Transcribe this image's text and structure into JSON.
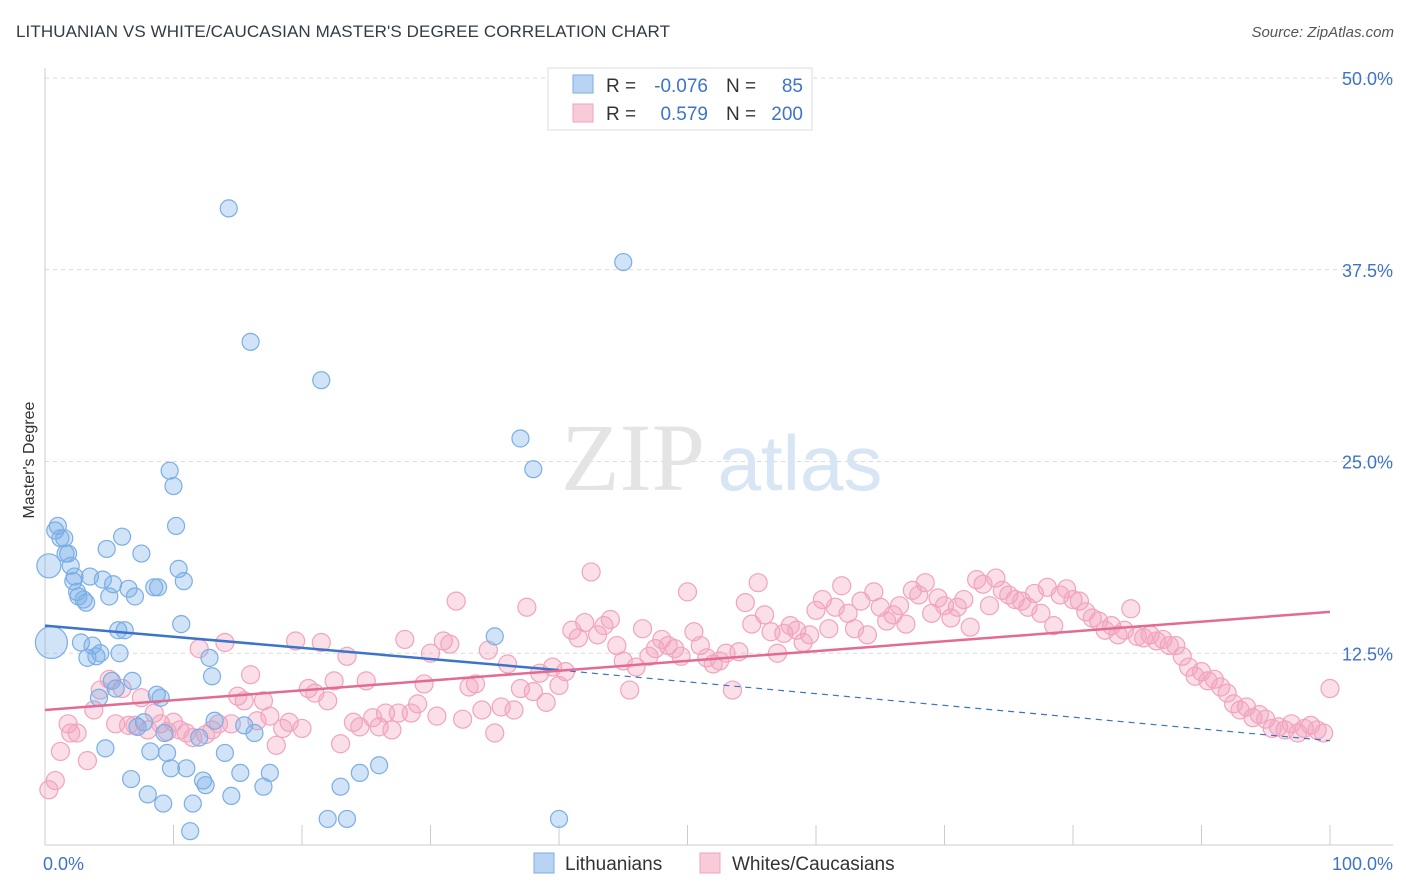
{
  "header": {
    "title": "LITHUANIAN VS WHITE/CAUCASIAN MASTER'S DEGREE CORRELATION CHART",
    "source": "Source: ZipAtlas.com"
  },
  "chart_data": {
    "type": "scatter",
    "ylabel": "Master's Degree",
    "xlim": [
      0,
      100
    ],
    "ylim": [
      0,
      50
    ],
    "y_ticks": [
      12.5,
      25.0,
      37.5,
      50.0
    ],
    "y_tick_labels": [
      "12.5%",
      "25.0%",
      "37.5%",
      "50.0%"
    ],
    "x_tick_labels": [
      "0.0%",
      "100.0%"
    ],
    "grid": true,
    "watermark": {
      "zip": "ZIP",
      "atlas": "atlas"
    },
    "legend_position": "top-center",
    "stats": [
      {
        "r_label": "R =",
        "r_value": "-0.076",
        "n_label": "N =",
        "n_value": "85"
      },
      {
        "r_label": "R =",
        "r_value": "0.579",
        "n_label": "N =",
        "n_value": "200"
      }
    ],
    "colors": {
      "blue": "#7aaee6",
      "blue_line": "#3b74c9",
      "pink": "#f2a3bd",
      "pink_line": "#e36a93",
      "axis_label": "#3d73c9"
    },
    "series": [
      {
        "name": "Lithuanians",
        "trend": {
          "solid": [
            [
              0,
              14.3
            ],
            [
              40,
              11.4
            ]
          ],
          "dashed": [
            [
              40,
              11.4
            ],
            [
              100,
              6.8
            ]
          ]
        },
        "points": [
          [
            0.3,
            18.2
          ],
          [
            0.5,
            13.2
          ],
          [
            0.8,
            20.5
          ],
          [
            1.0,
            20.8
          ],
          [
            1.2,
            20.0
          ],
          [
            1.5,
            20.0
          ],
          [
            1.6,
            19.0
          ],
          [
            1.8,
            19.0
          ],
          [
            2.0,
            18.2
          ],
          [
            2.2,
            17.2
          ],
          [
            2.3,
            17.5
          ],
          [
            2.5,
            16.5
          ],
          [
            2.6,
            16.2
          ],
          [
            2.8,
            13.2
          ],
          [
            3.0,
            16.0
          ],
          [
            3.2,
            15.8
          ],
          [
            3.3,
            12.2
          ],
          [
            3.5,
            17.5
          ],
          [
            3.7,
            13.0
          ],
          [
            4.0,
            12.3
          ],
          [
            4.2,
            9.6
          ],
          [
            4.3,
            12.5
          ],
          [
            4.5,
            17.3
          ],
          [
            4.7,
            6.3
          ],
          [
            4.8,
            19.3
          ],
          [
            5.0,
            16.2
          ],
          [
            5.2,
            10.7
          ],
          [
            5.3,
            17.0
          ],
          [
            5.5,
            10.2
          ],
          [
            5.7,
            14.0
          ],
          [
            5.8,
            12.5
          ],
          [
            6.0,
            20.1
          ],
          [
            6.2,
            14.0
          ],
          [
            6.5,
            16.7
          ],
          [
            6.7,
            4.3
          ],
          [
            6.8,
            10.7
          ],
          [
            7.0,
            16.2
          ],
          [
            7.2,
            7.7
          ],
          [
            7.5,
            19.0
          ],
          [
            7.7,
            8.0
          ],
          [
            8.0,
            3.3
          ],
          [
            8.2,
            6.1
          ],
          [
            8.5,
            16.8
          ],
          [
            8.7,
            9.8
          ],
          [
            8.8,
            16.8
          ],
          [
            9.0,
            9.6
          ],
          [
            9.2,
            2.7
          ],
          [
            9.3,
            7.3
          ],
          [
            9.5,
            6.0
          ],
          [
            9.7,
            24.4
          ],
          [
            9.8,
            5.0
          ],
          [
            10.0,
            23.4
          ],
          [
            10.2,
            20.8
          ],
          [
            10.4,
            18.0
          ],
          [
            10.6,
            14.4
          ],
          [
            10.8,
            17.2
          ],
          [
            11.0,
            5.0
          ],
          [
            11.3,
            0.9
          ],
          [
            11.5,
            2.7
          ],
          [
            12.0,
            7.0
          ],
          [
            12.3,
            4.2
          ],
          [
            12.5,
            3.9
          ],
          [
            12.8,
            12.2
          ],
          [
            13.0,
            11.0
          ],
          [
            13.2,
            8.1
          ],
          [
            14.0,
            6.0
          ],
          [
            14.3,
            41.5
          ],
          [
            14.5,
            3.2
          ],
          [
            15.2,
            4.7
          ],
          [
            15.5,
            7.8
          ],
          [
            16.0,
            32.8
          ],
          [
            16.3,
            7.3
          ],
          [
            17.0,
            3.8
          ],
          [
            17.5,
            4.7
          ],
          [
            21.5,
            30.3
          ],
          [
            22.0,
            1.7
          ],
          [
            23.0,
            3.8
          ],
          [
            23.5,
            1.7
          ],
          [
            24.5,
            4.7
          ],
          [
            26.0,
            5.2
          ],
          [
            35.0,
            13.6
          ],
          [
            37.0,
            26.5
          ],
          [
            38.0,
            24.5
          ],
          [
            40.0,
            1.7
          ],
          [
            45.0,
            38.0
          ]
        ]
      },
      {
        "name": "Whites/Caucasians",
        "trend": {
          "solid": [
            [
              0,
              8.8
            ],
            [
              100,
              15.2
            ]
          ]
        },
        "points": [
          [
            0.3,
            3.6
          ],
          [
            0.8,
            4.2
          ],
          [
            1.2,
            6.1
          ],
          [
            1.8,
            7.9
          ],
          [
            2.0,
            7.3
          ],
          [
            2.5,
            7.3
          ],
          [
            3.3,
            5.5
          ],
          [
            3.8,
            8.8
          ],
          [
            4.3,
            10.1
          ],
          [
            5.0,
            10.8
          ],
          [
            5.5,
            7.9
          ],
          [
            6.0,
            10.2
          ],
          [
            6.5,
            7.8
          ],
          [
            7.0,
            7.8
          ],
          [
            7.5,
            9.6
          ],
          [
            8.0,
            7.5
          ],
          [
            8.5,
            8.6
          ],
          [
            9.0,
            7.9
          ],
          [
            9.5,
            7.4
          ],
          [
            10.0,
            8.0
          ],
          [
            10.5,
            7.5
          ],
          [
            11.0,
            7.3
          ],
          [
            11.5,
            7.0
          ],
          [
            12.0,
            12.8
          ],
          [
            12.5,
            7.2
          ],
          [
            13.0,
            7.5
          ],
          [
            13.5,
            7.9
          ],
          [
            14.0,
            13.2
          ],
          [
            14.5,
            7.9
          ],
          [
            15.0,
            9.7
          ],
          [
            15.5,
            9.4
          ],
          [
            16.0,
            11.1
          ],
          [
            16.5,
            8.1
          ],
          [
            17.0,
            9.4
          ],
          [
            17.5,
            8.4
          ],
          [
            18.0,
            6.5
          ],
          [
            18.5,
            7.6
          ],
          [
            19.0,
            8.0
          ],
          [
            19.5,
            13.3
          ],
          [
            20.0,
            7.6
          ],
          [
            20.5,
            10.2
          ],
          [
            21.0,
            9.9
          ],
          [
            21.5,
            13.2
          ],
          [
            22.0,
            9.4
          ],
          [
            22.5,
            10.7
          ],
          [
            23.0,
            6.6
          ],
          [
            23.5,
            12.3
          ],
          [
            24.0,
            8.0
          ],
          [
            24.5,
            7.7
          ],
          [
            25.0,
            10.7
          ],
          [
            25.5,
            8.3
          ],
          [
            26.0,
            7.7
          ],
          [
            26.5,
            8.6
          ],
          [
            27.0,
            7.5
          ],
          [
            27.5,
            8.6
          ],
          [
            28.0,
            13.4
          ],
          [
            28.5,
            8.6
          ],
          [
            29.0,
            9.2
          ],
          [
            29.5,
            10.5
          ],
          [
            30.0,
            12.5
          ],
          [
            30.5,
            8.4
          ],
          [
            31.0,
            13.3
          ],
          [
            31.5,
            13.1
          ],
          [
            32.0,
            15.9
          ],
          [
            32.5,
            8.2
          ],
          [
            33.0,
            10.3
          ],
          [
            33.5,
            10.5
          ],
          [
            34.0,
            8.8
          ],
          [
            34.5,
            12.7
          ],
          [
            35.0,
            7.3
          ],
          [
            35.5,
            9.0
          ],
          [
            36.0,
            11.8
          ],
          [
            36.5,
            8.8
          ],
          [
            37.0,
            10.2
          ],
          [
            37.5,
            15.5
          ],
          [
            38.0,
            10.0
          ],
          [
            38.5,
            11.2
          ],
          [
            39.0,
            9.3
          ],
          [
            39.5,
            11.6
          ],
          [
            40.0,
            10.4
          ],
          [
            40.5,
            11.3
          ],
          [
            41.0,
            14.0
          ],
          [
            41.5,
            13.5
          ],
          [
            42.0,
            14.5
          ],
          [
            42.5,
            17.8
          ],
          [
            43.0,
            13.7
          ],
          [
            43.5,
            14.3
          ],
          [
            44.0,
            14.7
          ],
          [
            44.5,
            13.0
          ],
          [
            45.0,
            12.0
          ],
          [
            45.5,
            10.1
          ],
          [
            46.0,
            11.6
          ],
          [
            46.5,
            14.1
          ],
          [
            47.0,
            12.3
          ],
          [
            47.5,
            12.8
          ],
          [
            48.0,
            13.4
          ],
          [
            48.5,
            13.0
          ],
          [
            49.0,
            12.8
          ],
          [
            49.5,
            12.3
          ],
          [
            50.0,
            16.5
          ],
          [
            50.5,
            13.9
          ],
          [
            51.0,
            13.0
          ],
          [
            51.5,
            12.2
          ],
          [
            52.0,
            11.8
          ],
          [
            52.5,
            12.0
          ],
          [
            53.0,
            12.5
          ],
          [
            53.5,
            10.1
          ],
          [
            54.0,
            12.6
          ],
          [
            54.5,
            15.8
          ],
          [
            55.0,
            14.4
          ],
          [
            55.5,
            17.1
          ],
          [
            56.0,
            15.0
          ],
          [
            56.5,
            13.9
          ],
          [
            57.0,
            12.5
          ],
          [
            57.5,
            13.8
          ],
          [
            58.0,
            14.3
          ],
          [
            58.5,
            14.0
          ],
          [
            59.0,
            13.2
          ],
          [
            59.5,
            13.7
          ],
          [
            60.0,
            15.3
          ],
          [
            60.5,
            16.0
          ],
          [
            61.0,
            14.1
          ],
          [
            61.5,
            15.5
          ],
          [
            62.0,
            16.9
          ],
          [
            62.5,
            15.1
          ],
          [
            63.0,
            14.1
          ],
          [
            63.5,
            15.9
          ],
          [
            64.0,
            13.7
          ],
          [
            64.5,
            16.5
          ],
          [
            65.0,
            15.5
          ],
          [
            65.5,
            14.6
          ],
          [
            66.0,
            15.0
          ],
          [
            66.5,
            15.6
          ],
          [
            67.0,
            14.4
          ],
          [
            67.5,
            16.6
          ],
          [
            68.0,
            16.3
          ],
          [
            68.5,
            17.1
          ],
          [
            69.0,
            15.1
          ],
          [
            69.5,
            16.1
          ],
          [
            70.0,
            15.6
          ],
          [
            70.5,
            14.8
          ],
          [
            71.0,
            15.5
          ],
          [
            71.5,
            16.0
          ],
          [
            72.0,
            14.2
          ],
          [
            72.5,
            17.3
          ],
          [
            73.0,
            17.0
          ],
          [
            73.5,
            15.6
          ],
          [
            74.0,
            17.4
          ],
          [
            74.5,
            16.6
          ],
          [
            75.0,
            16.3
          ],
          [
            75.5,
            16.0
          ],
          [
            76.0,
            15.9
          ],
          [
            76.5,
            15.5
          ],
          [
            77.0,
            16.4
          ],
          [
            77.5,
            15.1
          ],
          [
            78.0,
            16.8
          ],
          [
            78.5,
            14.3
          ],
          [
            79.0,
            16.3
          ],
          [
            79.5,
            16.7
          ],
          [
            80.0,
            16.0
          ],
          [
            80.5,
            15.9
          ],
          [
            81.0,
            15.2
          ],
          [
            81.5,
            14.8
          ],
          [
            82.0,
            14.6
          ],
          [
            82.5,
            14.0
          ],
          [
            83.0,
            14.3
          ],
          [
            83.5,
            13.7
          ],
          [
            84.0,
            14.0
          ],
          [
            84.5,
            15.4
          ],
          [
            85.0,
            13.6
          ],
          [
            85.5,
            13.5
          ],
          [
            86.0,
            13.7
          ],
          [
            86.5,
            13.3
          ],
          [
            87.0,
            13.4
          ],
          [
            87.5,
            13.0
          ],
          [
            88.0,
            13.0
          ],
          [
            88.5,
            12.3
          ],
          [
            89.0,
            11.6
          ],
          [
            89.5,
            11.0
          ],
          [
            90.0,
            11.3
          ],
          [
            90.5,
            10.7
          ],
          [
            91.0,
            10.8
          ],
          [
            91.5,
            10.3
          ],
          [
            92.0,
            9.9
          ],
          [
            92.5,
            9.2
          ],
          [
            93.0,
            8.8
          ],
          [
            93.5,
            9.0
          ],
          [
            94.0,
            8.3
          ],
          [
            94.5,
            8.5
          ],
          [
            95.0,
            8.2
          ],
          [
            95.5,
            7.6
          ],
          [
            96.0,
            7.7
          ],
          [
            96.5,
            7.5
          ],
          [
            97.0,
            7.9
          ],
          [
            97.5,
            7.3
          ],
          [
            98.0,
            7.6
          ],
          [
            98.5,
            7.8
          ],
          [
            99.0,
            7.5
          ],
          [
            99.5,
            7.3
          ],
          [
            100.0,
            10.2
          ]
        ]
      }
    ]
  }
}
